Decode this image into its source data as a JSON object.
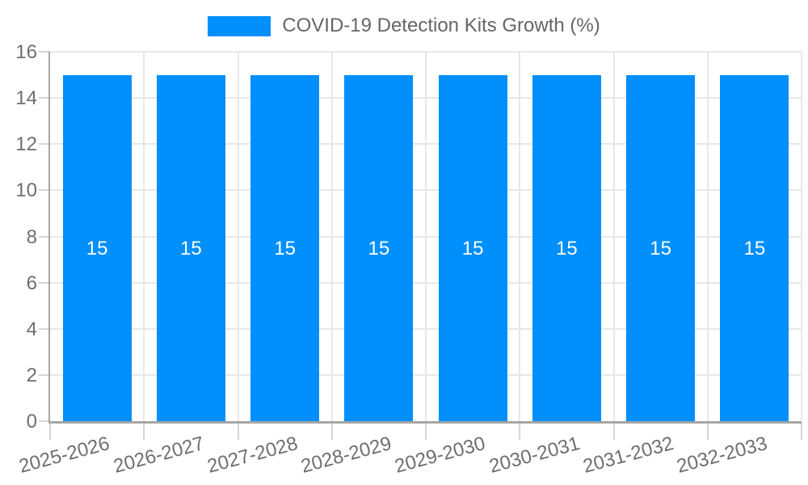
{
  "chart_data": {
    "type": "bar",
    "title": "COVID-19 Detection Kits Growth (%)",
    "legend": {
      "label": "COVID-19 Detection Kits Growth (%)",
      "position": "top",
      "marker": "rectangle"
    },
    "categories": [
      "2025-2026",
      "2026-2027",
      "2027-2028",
      "2028-2029",
      "2029-2030",
      "2030-2031",
      "2031-2032",
      "2032-2033"
    ],
    "series": [
      {
        "name": "COVID-19 Detection Kits Growth (%)",
        "values": [
          15,
          15,
          15,
          15,
          15,
          15,
          15,
          15
        ]
      }
    ],
    "bar_value_labels": [
      "15",
      "15",
      "15",
      "15",
      "15",
      "15",
      "15",
      "15"
    ],
    "xlabel": "",
    "ylabel": "",
    "ylim": [
      0,
      16
    ],
    "yticks": [
      0,
      2,
      4,
      6,
      8,
      10,
      12,
      14,
      16
    ],
    "grid": true,
    "x_label_rotation_deg": -15,
    "colors": {
      "bar": "#008FFB",
      "grid": "#e7e7e7",
      "axis_line": "#a6a6a6",
      "tick": "#d6d6d6",
      "axis_text": "#6e6e6e",
      "legend_text": "#666666",
      "bar_label_text": "#ffffff",
      "background": "#ffffff"
    }
  }
}
